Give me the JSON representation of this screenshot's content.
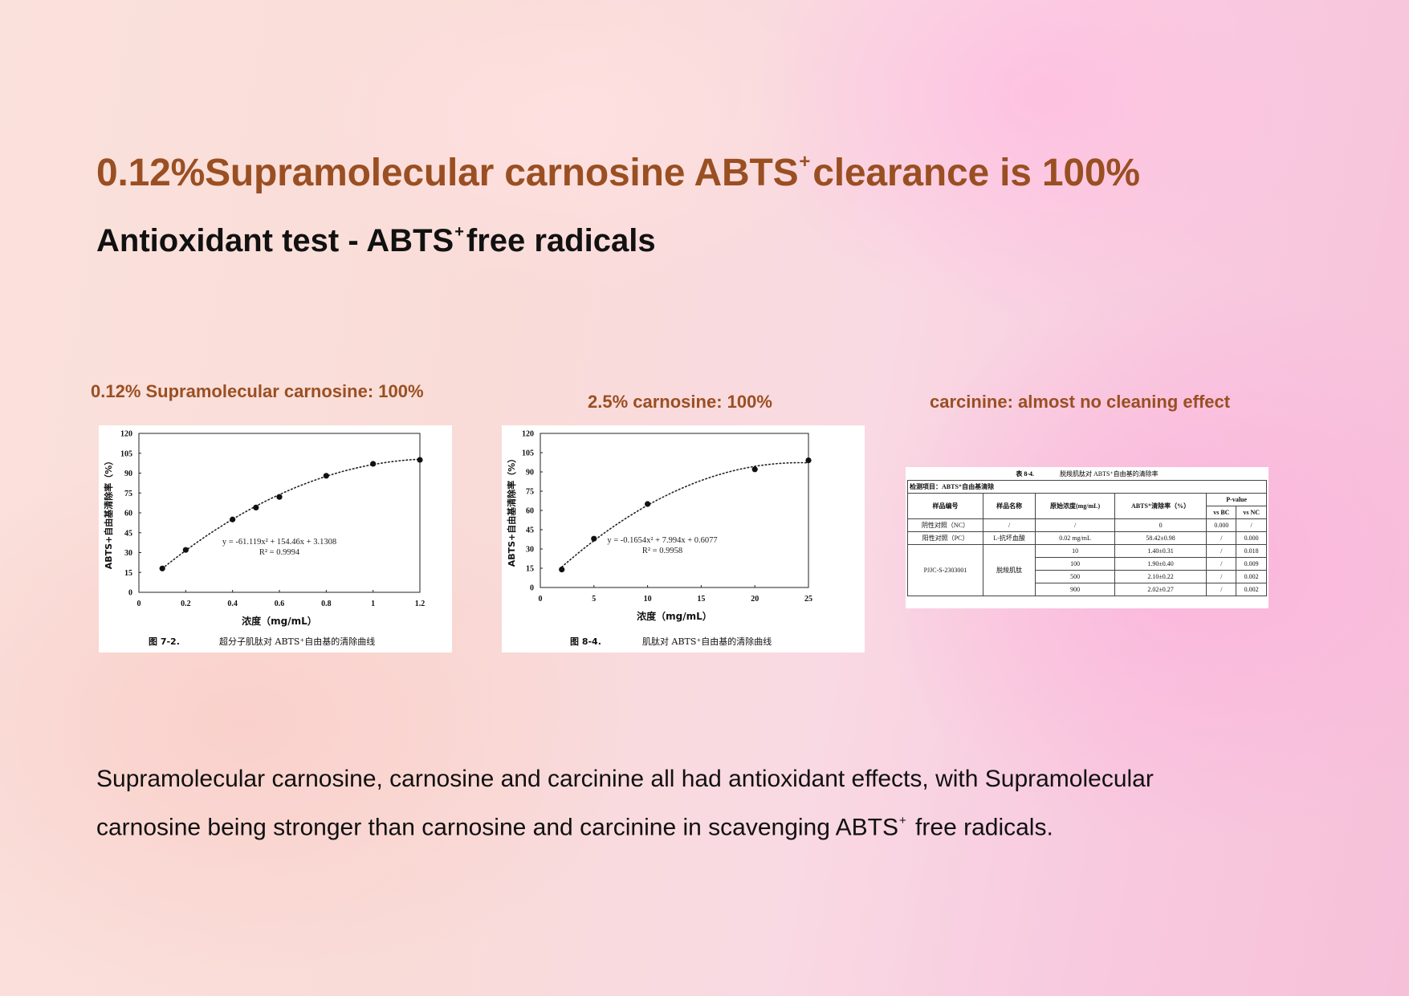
{
  "header": {
    "title_pre": "0.12%Supramolecular carnosine ABTS",
    "title_sup": "+",
    "title_post": "clearance is 100%",
    "subtitle_pre": "Antioxidant test - ABTS",
    "subtitle_sup": "+",
    "subtitle_post": "free radicals"
  },
  "captions": {
    "left": "0.12% Supramolecular carnosine: 100%",
    "middle": "2.5% carnosine: 100%",
    "right": "carcinine: almost no cleaning effect"
  },
  "chart_data": [
    {
      "type": "scatter",
      "xlabel": "浓度（mg/mL）",
      "ylabel": "ABTS+自由基清除率（%）",
      "xlim": [
        0,
        1.2
      ],
      "ylim": [
        0,
        120
      ],
      "xticks": [
        "0",
        "0.2",
        "0.4",
        "0.6",
        "0.8",
        "1",
        "1.2"
      ],
      "yticks": [
        "0",
        "15",
        "30",
        "45",
        "60",
        "75",
        "90",
        "105",
        "120"
      ],
      "x": [
        0.1,
        0.2,
        0.4,
        0.5,
        0.6,
        0.8,
        1.0,
        1.2
      ],
      "y": [
        18,
        32,
        55,
        64,
        72,
        88,
        97,
        100
      ],
      "fit": {
        "a": -61.119,
        "b": 154.46,
        "c": 3.1308,
        "x_range": [
          0.1,
          1.2
        ]
      },
      "equation": "y = -61.119x² + 154.46x + 3.1308",
      "r2": "R² = 0.9994",
      "fig_no": "图 7-2.",
      "fig_caption": "超分子肌肽对 ABTS⁺自由基的清除曲线"
    },
    {
      "type": "scatter",
      "xlabel": "浓度（mg/mL）",
      "ylabel": "ABTS+自由基清除率（%）",
      "xlim": [
        0,
        25
      ],
      "ylim": [
        0,
        120
      ],
      "xticks": [
        "0",
        "5",
        "10",
        "15",
        "20",
        "25"
      ],
      "yticks": [
        "0",
        "15",
        "30",
        "45",
        "60",
        "75",
        "90",
        "105",
        "120"
      ],
      "x": [
        2,
        5,
        10,
        20,
        25
      ],
      "y": [
        14,
        38,
        65,
        92,
        99
      ],
      "fit": {
        "a": -0.1654,
        "b": 7.994,
        "c": 0.6077,
        "x_range": [
          2,
          25
        ]
      },
      "equation": "y = -0.1654x² + 7.994x + 0.6077",
      "r2": "R² = 0.9958",
      "fig_no": "图 8-4.",
      "fig_caption": "肌肽对 ABTS⁺自由基的清除曲线"
    }
  ],
  "table": {
    "title_no": "表 8-4.",
    "title": "脱羧肌肽对 ABTS⁺自由基的清除率",
    "project": "检测项目：ABTS⁺自由基清除",
    "headers": [
      "样品编号",
      "样品名称",
      "原始浓度(mg/mL)",
      "ABTS⁺清除率（%）",
      "P-value",
      "vs BC",
      "vs NC"
    ],
    "rows": [
      [
        "阴性对照（NC）",
        "/",
        "/",
        "0",
        "0.000",
        "/"
      ],
      [
        "阳性对照（PC）",
        "L-抗坏血酸",
        "0.02 mg/mL",
        "58.42±0.98",
        "/",
        "0.000"
      ]
    ],
    "sample_id": "PJJC-S-2303001",
    "sample_name": "脱羧肌肽",
    "sample_rows": [
      [
        "10",
        "1.40±0.31",
        "/",
        "0.018"
      ],
      [
        "100",
        "1.90±0.40",
        "/",
        "0.009"
      ],
      [
        "500",
        "2.10±0.22",
        "/",
        "0.002"
      ],
      [
        "900",
        "2.02±0.27",
        "/",
        "0.002"
      ]
    ]
  },
  "body": {
    "line1": "Supramolecular carnosine, carnosine and carcinine all had antioxidant effects, with Supramolecular",
    "line2_pre": "carnosine being stronger than carnosine and carcinine in scavenging ABTS",
    "line2_sup": "+",
    "line2_post": " free radicals."
  }
}
